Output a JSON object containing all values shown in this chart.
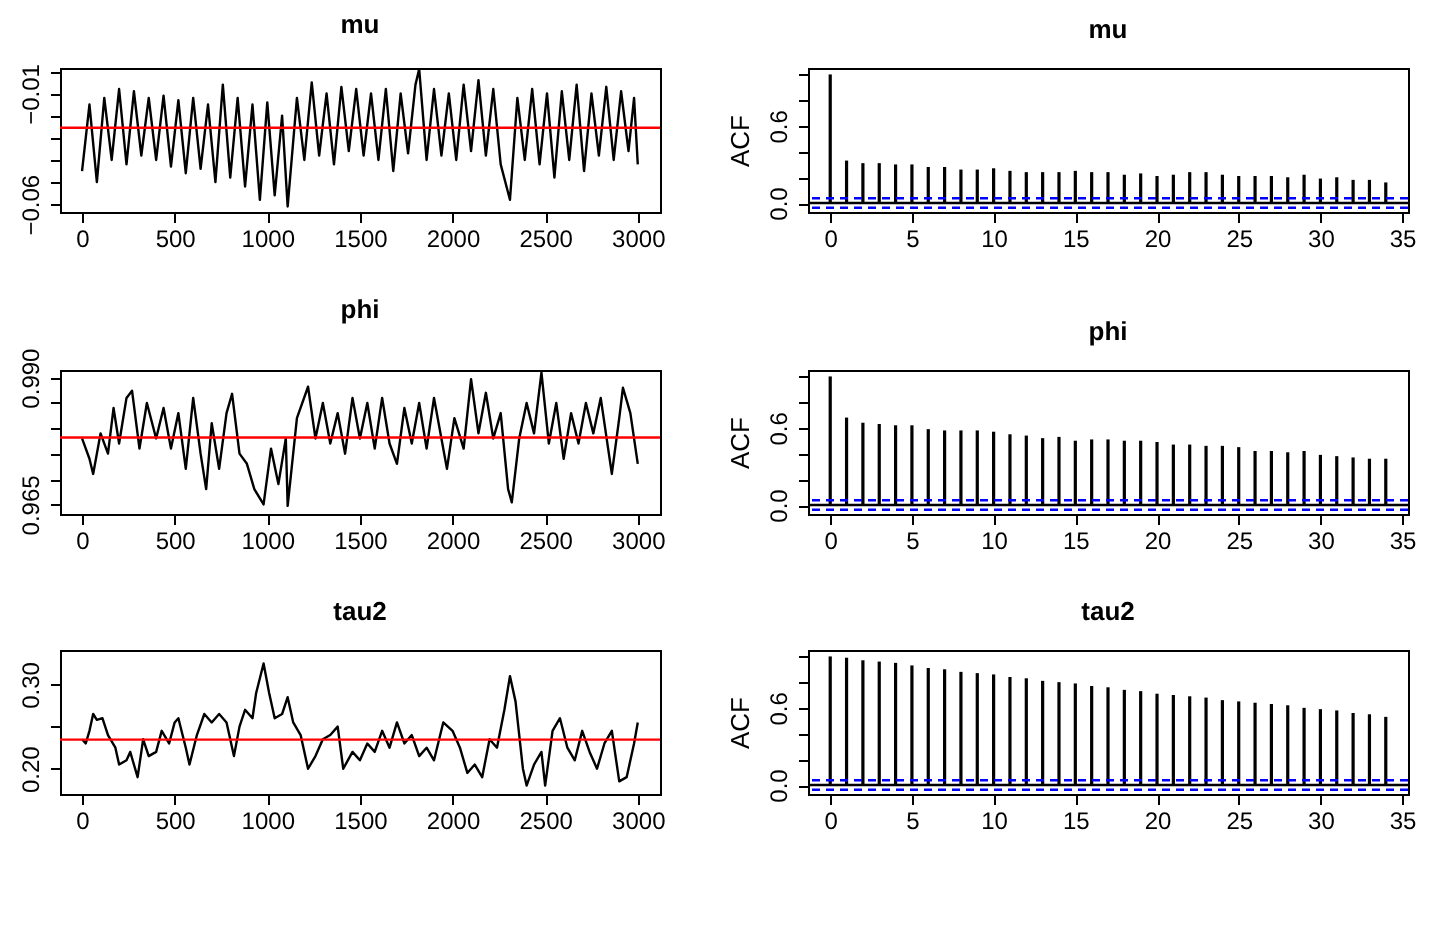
{
  "chart_data": [
    {
      "type": "line",
      "title": "mu",
      "xlim": [
        -119,
        3120
      ],
      "xticks": [
        0,
        500,
        1000,
        1500,
        2000,
        2500,
        3000
      ],
      "ylim": [
        -0.0635,
        0.0015
      ],
      "yticks": [
        {
          "value": -0.06,
          "label": "−0.06"
        },
        {
          "value": -0.05,
          "label": null
        },
        {
          "value": -0.04,
          "label": null
        },
        {
          "value": -0.03,
          "label": null
        },
        {
          "value": -0.02,
          "label": null
        },
        {
          "value": -0.01,
          "label": "−0.01"
        },
        {
          "value": 0,
          "label": null
        }
      ],
      "ref_lines": [
        {
          "axis": "y",
          "value": -0.0255,
          "color": "#ff0000"
        }
      ],
      "x": [
        0,
        40,
        80,
        120,
        160,
        200,
        240,
        280,
        320,
        360,
        400,
        440,
        480,
        520,
        560,
        600,
        640,
        680,
        720,
        760,
        800,
        840,
        880,
        920,
        960,
        1000,
        1040,
        1080,
        1110,
        1160,
        1200,
        1240,
        1280,
        1320,
        1360,
        1400,
        1440,
        1480,
        1520,
        1560,
        1600,
        1640,
        1680,
        1720,
        1760,
        1800,
        1820,
        1860,
        1900,
        1940,
        1980,
        2020,
        2060,
        2100,
        2140,
        2180,
        2220,
        2260,
        2310,
        2350,
        2390,
        2430,
        2470,
        2510,
        2550,
        2590,
        2630,
        2670,
        2710,
        2750,
        2790,
        2830,
        2870,
        2910,
        2950,
        2980,
        3000
      ],
      "series": [
        {
          "color": "#000000",
          "values": [
            -0.045,
            -0.015,
            -0.05,
            -0.012,
            -0.04,
            -0.008,
            -0.042,
            -0.009,
            -0.038,
            -0.012,
            -0.04,
            -0.011,
            -0.043,
            -0.013,
            -0.046,
            -0.012,
            -0.044,
            -0.015,
            -0.05,
            -0.006,
            -0.048,
            -0.012,
            -0.052,
            -0.015,
            -0.058,
            -0.014,
            -0.056,
            -0.02,
            -0.061,
            -0.012,
            -0.04,
            -0.005,
            -0.038,
            -0.01,
            -0.042,
            -0.007,
            -0.036,
            -0.008,
            -0.038,
            -0.01,
            -0.04,
            -0.008,
            -0.045,
            -0.01,
            -0.037,
            -0.006,
            0.001,
            -0.04,
            -0.008,
            -0.038,
            -0.01,
            -0.04,
            -0.006,
            -0.036,
            -0.004,
            -0.038,
            -0.008,
            -0.042,
            -0.058,
            -0.012,
            -0.04,
            -0.008,
            -0.042,
            -0.01,
            -0.048,
            -0.009,
            -0.04,
            -0.006,
            -0.045,
            -0.01,
            -0.038,
            -0.007,
            -0.04,
            -0.009,
            -0.036,
            -0.012,
            -0.042
          ]
        }
      ]
    },
    {
      "type": "bar",
      "title": "mu",
      "ylabel": "ACF",
      "xlim": [
        -1.36,
        35.36
      ],
      "xticks": [
        0,
        5,
        10,
        15,
        20,
        25,
        30,
        35
      ],
      "ylim": [
        -0.07,
        1.05
      ],
      "yticks": [
        {
          "value": 0,
          "label": "0.0"
        },
        {
          "value": 0.2,
          "label": null
        },
        {
          "value": 0.4,
          "label": null
        },
        {
          "value": 0.6,
          "label": "0.6"
        },
        {
          "value": 0.8,
          "label": null
        },
        {
          "value": 1,
          "label": null
        }
      ],
      "ref_lines": [
        {
          "axis": "y",
          "value": 0,
          "color": "#000000"
        },
        {
          "axis": "y",
          "value": 0.0365,
          "color": "#0000ff",
          "line_style": "dashed"
        },
        {
          "axis": "y",
          "value": -0.0365,
          "color": "#0000ff",
          "line_style": "dashed"
        }
      ],
      "x": [
        0,
        1,
        2,
        3,
        4,
        5,
        6,
        7,
        8,
        9,
        10,
        11,
        12,
        13,
        14,
        15,
        16,
        17,
        18,
        19,
        20,
        21,
        22,
        23,
        24,
        25,
        26,
        27,
        28,
        29,
        30,
        31,
        32,
        33,
        34
      ],
      "series": [
        {
          "color": "#000000",
          "values": [
            1,
            0.33,
            0.31,
            0.31,
            0.3,
            0.3,
            0.28,
            0.28,
            0.26,
            0.26,
            0.27,
            0.25,
            0.24,
            0.24,
            0.24,
            0.25,
            0.24,
            0.24,
            0.22,
            0.23,
            0.21,
            0.22,
            0.24,
            0.24,
            0.22,
            0.21,
            0.21,
            0.21,
            0.2,
            0.22,
            0.19,
            0.2,
            0.18,
            0.18,
            0.16
          ]
        }
      ]
    },
    {
      "type": "line",
      "title": "phi",
      "xlim": [
        -119,
        3120
      ],
      "xticks": [
        0,
        500,
        1000,
        1500,
        2000,
        2500,
        3000
      ],
      "ylim": [
        0.9631,
        0.9915
      ],
      "yticks": [
        {
          "value": 0.965,
          "label": "0.965"
        },
        {
          "value": 0.97,
          "label": null
        },
        {
          "value": 0.975,
          "label": null
        },
        {
          "value": 0.98,
          "label": null
        },
        {
          "value": 0.985,
          "label": null
        },
        {
          "value": 0.99,
          "label": "0.990"
        }
      ],
      "ref_lines": [
        {
          "axis": "y",
          "value": 0.9782,
          "color": "#ff0000"
        }
      ],
      "x": [
        0,
        40,
        60,
        100,
        140,
        170,
        200,
        240,
        270,
        310,
        350,
        400,
        440,
        480,
        520,
        560,
        600,
        640,
        670,
        700,
        740,
        780,
        810,
        850,
        890,
        930,
        980,
        1020,
        1060,
        1100,
        1110,
        1160,
        1220,
        1260,
        1300,
        1340,
        1380,
        1420,
        1460,
        1500,
        1540,
        1580,
        1620,
        1660,
        1700,
        1740,
        1780,
        1820,
        1860,
        1900,
        1940,
        1970,
        2010,
        2060,
        2100,
        2140,
        2180,
        2220,
        2260,
        2300,
        2320,
        2360,
        2400,
        2440,
        2480,
        2520,
        2560,
        2600,
        2640,
        2680,
        2720,
        2760,
        2800,
        2840,
        2860,
        2900,
        2920,
        2960,
        3000
      ],
      "series": [
        {
          "color": "#000000",
          "values": [
            0.978,
            0.974,
            0.971,
            0.979,
            0.975,
            0.984,
            0.977,
            0.986,
            0.9874,
            0.976,
            0.985,
            0.978,
            0.984,
            0.976,
            0.983,
            0.972,
            0.986,
            0.975,
            0.968,
            0.981,
            0.972,
            0.983,
            0.9868,
            0.975,
            0.973,
            0.968,
            0.965,
            0.976,
            0.969,
            0.978,
            0.9647,
            0.982,
            0.9882,
            0.978,
            0.985,
            0.977,
            0.983,
            0.975,
            0.986,
            0.978,
            0.985,
            0.976,
            0.986,
            0.977,
            0.973,
            0.984,
            0.977,
            0.985,
            0.976,
            0.986,
            0.978,
            0.972,
            0.982,
            0.976,
            0.9897,
            0.979,
            0.987,
            0.978,
            0.983,
            0.968,
            0.9654,
            0.978,
            0.985,
            0.979,
            0.991,
            0.977,
            0.985,
            0.974,
            0.983,
            0.977,
            0.985,
            0.979,
            0.986,
            0.976,
            0.971,
            0.982,
            0.988,
            0.983,
            0.973
          ]
        }
      ]
    },
    {
      "type": "bar",
      "title": "phi",
      "ylabel": "ACF",
      "xlim": [
        -1.36,
        35.36
      ],
      "xticks": [
        0,
        5,
        10,
        15,
        20,
        25,
        30,
        35
      ],
      "ylim": [
        -0.07,
        1.05
      ],
      "yticks": [
        {
          "value": 0,
          "label": "0.0"
        },
        {
          "value": 0.2,
          "label": null
        },
        {
          "value": 0.4,
          "label": null
        },
        {
          "value": 0.6,
          "label": "0.6"
        },
        {
          "value": 0.8,
          "label": null
        },
        {
          "value": 1,
          "label": null
        }
      ],
      "ref_lines": [
        {
          "axis": "y",
          "value": 0,
          "color": "#000000"
        },
        {
          "axis": "y",
          "value": 0.0365,
          "color": "#0000ff",
          "line_style": "dashed"
        },
        {
          "axis": "y",
          "value": -0.0365,
          "color": "#0000ff",
          "line_style": "dashed"
        }
      ],
      "x": [
        0,
        1,
        2,
        3,
        4,
        5,
        6,
        7,
        8,
        9,
        10,
        11,
        12,
        13,
        14,
        15,
        16,
        17,
        18,
        19,
        20,
        21,
        22,
        23,
        24,
        25,
        26,
        27,
        28,
        29,
        30,
        31,
        32,
        33,
        34
      ],
      "series": [
        {
          "color": "#000000",
          "values": [
            1,
            0.68,
            0.64,
            0.63,
            0.62,
            0.62,
            0.59,
            0.58,
            0.58,
            0.58,
            0.57,
            0.55,
            0.54,
            0.52,
            0.53,
            0.5,
            0.51,
            0.51,
            0.5,
            0.5,
            0.49,
            0.47,
            0.47,
            0.46,
            0.46,
            0.45,
            0.42,
            0.42,
            0.41,
            0.42,
            0.39,
            0.38,
            0.37,
            0.36,
            0.36
          ]
        }
      ]
    },
    {
      "type": "line",
      "title": "tau2",
      "xlim": [
        -119,
        3120
      ],
      "xticks": [
        0,
        500,
        1000,
        1500,
        2000,
        2500,
        3000
      ],
      "ylim": [
        0.17,
        0.341
      ],
      "yticks": [
        {
          "value": 0.2,
          "label": "0.20"
        },
        {
          "value": 0.25,
          "label": null
        },
        {
          "value": 0.3,
          "label": "0.30"
        }
      ],
      "ref_lines": [
        {
          "axis": "y",
          "value": 0.2346,
          "color": "#ff0000"
        }
      ],
      "x": [
        0,
        20,
        40,
        60,
        80,
        110,
        140,
        180,
        200,
        240,
        260,
        300,
        330,
        360,
        400,
        430,
        470,
        500,
        520,
        560,
        580,
        620,
        660,
        700,
        740,
        780,
        820,
        850,
        880,
        920,
        940,
        980,
        1010,
        1040,
        1080,
        1110,
        1140,
        1180,
        1220,
        1260,
        1300,
        1340,
        1380,
        1410,
        1460,
        1500,
        1540,
        1580,
        1620,
        1660,
        1700,
        1740,
        1780,
        1820,
        1860,
        1900,
        1950,
        2000,
        2040,
        2080,
        2120,
        2160,
        2200,
        2240,
        2280,
        2310,
        2340,
        2380,
        2400,
        2440,
        2480,
        2500,
        2540,
        2580,
        2620,
        2660,
        2700,
        2740,
        2780,
        2820,
        2860,
        2900,
        2940,
        2980,
        3000
      ],
      "series": [
        {
          "color": "#000000",
          "values": [
            0.235,
            0.23,
            0.245,
            0.265,
            0.258,
            0.26,
            0.24,
            0.225,
            0.205,
            0.21,
            0.22,
            0.19,
            0.235,
            0.215,
            0.22,
            0.245,
            0.23,
            0.255,
            0.26,
            0.225,
            0.205,
            0.24,
            0.265,
            0.255,
            0.265,
            0.255,
            0.215,
            0.25,
            0.27,
            0.26,
            0.29,
            0.325,
            0.29,
            0.26,
            0.265,
            0.285,
            0.255,
            0.24,
            0.2,
            0.215,
            0.235,
            0.24,
            0.25,
            0.2,
            0.22,
            0.21,
            0.23,
            0.22,
            0.245,
            0.225,
            0.255,
            0.23,
            0.24,
            0.215,
            0.225,
            0.21,
            0.255,
            0.245,
            0.225,
            0.195,
            0.205,
            0.19,
            0.235,
            0.225,
            0.27,
            0.31,
            0.28,
            0.2,
            0.18,
            0.205,
            0.22,
            0.18,
            0.245,
            0.26,
            0.225,
            0.21,
            0.245,
            0.22,
            0.2,
            0.23,
            0.245,
            0.185,
            0.19,
            0.23,
            0.255
          ]
        }
      ]
    },
    {
      "type": "bar",
      "title": "tau2",
      "ylabel": "ACF",
      "xlim": [
        -1.36,
        35.36
      ],
      "xticks": [
        0,
        5,
        10,
        15,
        20,
        25,
        30,
        35
      ],
      "ylim": [
        -0.07,
        1.05
      ],
      "yticks": [
        {
          "value": 0,
          "label": "0.0"
        },
        {
          "value": 0.2,
          "label": null
        },
        {
          "value": 0.4,
          "label": null
        },
        {
          "value": 0.6,
          "label": "0.6"
        },
        {
          "value": 0.8,
          "label": null
        },
        {
          "value": 1,
          "label": null
        }
      ],
      "ref_lines": [
        {
          "axis": "y",
          "value": 0,
          "color": "#000000"
        },
        {
          "axis": "y",
          "value": 0.0365,
          "color": "#0000ff",
          "line_style": "dashed"
        },
        {
          "axis": "y",
          "value": -0.0365,
          "color": "#0000ff",
          "line_style": "dashed"
        }
      ],
      "x": [
        0,
        1,
        2,
        3,
        4,
        5,
        6,
        7,
        8,
        9,
        10,
        11,
        12,
        13,
        14,
        15,
        16,
        17,
        18,
        19,
        20,
        21,
        22,
        23,
        24,
        25,
        26,
        27,
        28,
        29,
        30,
        31,
        32,
        33,
        34
      ],
      "series": [
        {
          "color": "#000000",
          "values": [
            1,
            0.99,
            0.97,
            0.96,
            0.95,
            0.93,
            0.91,
            0.9,
            0.88,
            0.87,
            0.86,
            0.84,
            0.83,
            0.81,
            0.8,
            0.79,
            0.77,
            0.76,
            0.74,
            0.73,
            0.71,
            0.7,
            0.69,
            0.68,
            0.66,
            0.65,
            0.64,
            0.63,
            0.62,
            0.6,
            0.59,
            0.58,
            0.56,
            0.55,
            0.53
          ]
        }
      ]
    }
  ]
}
